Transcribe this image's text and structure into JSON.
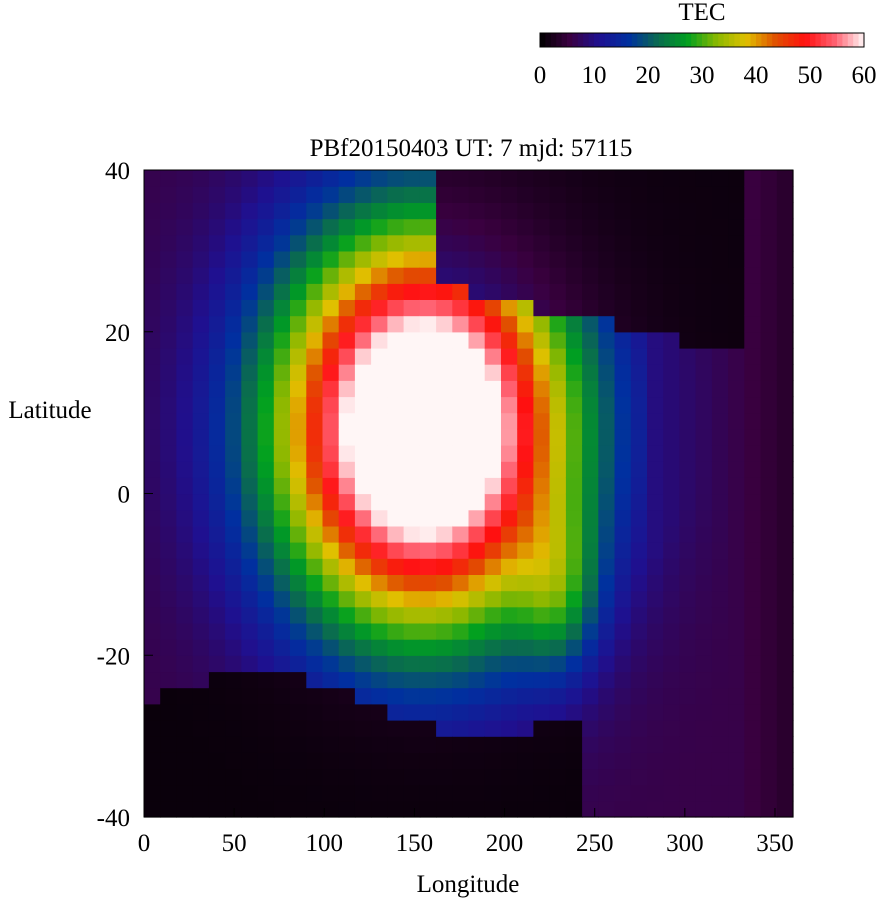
{
  "chart_data": {
    "type": "heatmap",
    "title": "PBf20150403  UT: 7  mjd: 57115",
    "xlabel": "Longitude",
    "ylabel": "Latitude",
    "xlim": [
      0,
      360
    ],
    "ylim": [
      -40,
      40
    ],
    "x_ticks": [
      "0",
      "50",
      "100",
      "150",
      "200",
      "250",
      "300",
      "350"
    ],
    "y_ticks": [
      "40",
      "20",
      "0",
      "-20",
      "-40"
    ],
    "colorbar": {
      "label": "TEC",
      "min": 0,
      "max": 60,
      "ticks": [
        "0",
        "10",
        "20",
        "30",
        "40",
        "50",
        "60"
      ],
      "palette": [
        "#000000",
        "#3a0040",
        "#1f1090",
        "#0030a0",
        "#0a6a50",
        "#00a020",
        "#8ab800",
        "#e0c000",
        "#e05000",
        "#ff1010",
        "#ff6070",
        "#fff6f6"
      ]
    },
    "feature_summary": {
      "peak_region_lon": [
        70,
        240
      ],
      "peak_region_lat": [
        -15,
        28
      ],
      "peak_tec": 60,
      "low_tec_regions": [
        "north-east above lat 25 lon 180-330",
        "south below lat -25 lon 0-240",
        "east of lon 290"
      ]
    }
  }
}
